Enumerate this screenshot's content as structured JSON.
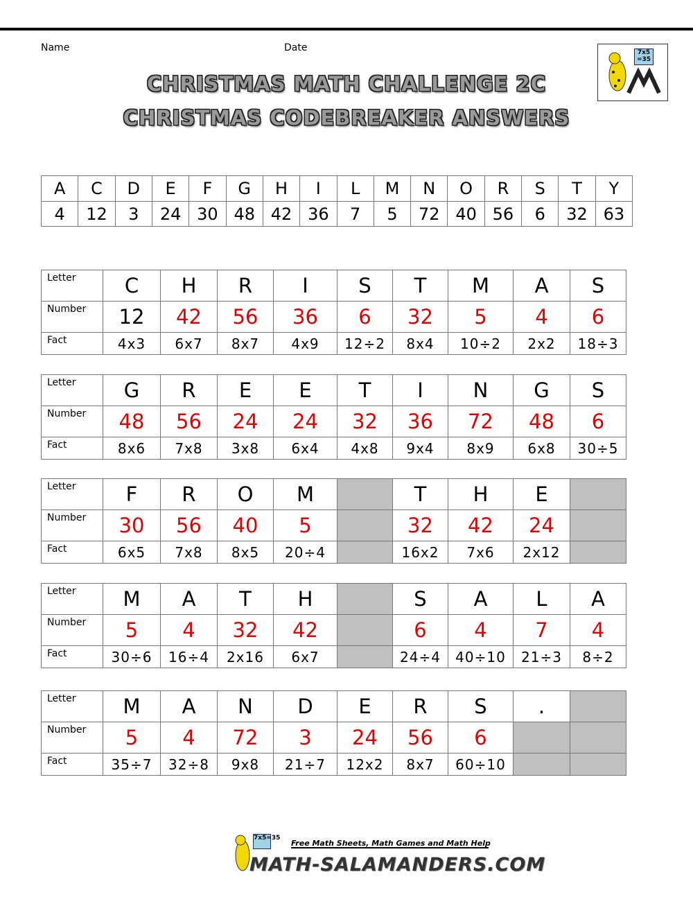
{
  "header": {
    "name_label": "Name",
    "date_label": "Date",
    "title_lines": [
      "CHRISTMAS MATH CHALLENGE 2C",
      "CHRISTMAS CODEBREAKER ANSWERS"
    ],
    "logo_board": [
      "7x5",
      "=35"
    ]
  },
  "key": {
    "letters": [
      "A",
      "C",
      "D",
      "E",
      "F",
      "G",
      "H",
      "I",
      "L",
      "M",
      "N",
      "O",
      "R",
      "S",
      "T",
      "Y"
    ],
    "numbers": [
      4,
      12,
      3,
      24,
      30,
      48,
      42,
      36,
      7,
      5,
      72,
      40,
      56,
      6,
      32,
      63
    ]
  },
  "row_labels": [
    "Letter",
    "Number",
    "Fact"
  ],
  "puzzles": [
    {
      "letters": [
        "C",
        "H",
        "R",
        "I",
        "S",
        "T",
        "M",
        "A",
        "S"
      ],
      "numbers": [
        12,
        42,
        56,
        36,
        6,
        32,
        5,
        4,
        6
      ],
      "facts": [
        "4x3",
        "6x7",
        "8x7",
        "4x9",
        "12÷2",
        "8x4",
        "10÷2",
        "2x2",
        "18÷3"
      ]
    },
    {
      "letters": [
        "G",
        "R",
        "E",
        "E",
        "T",
        "I",
        "N",
        "G",
        "S"
      ],
      "numbers": [
        48,
        56,
        24,
        24,
        32,
        36,
        72,
        48,
        6
      ],
      "facts": [
        "8x6",
        "7x8",
        "3x8",
        "6x4",
        "4x8",
        "9x4",
        "8x9",
        "6x8",
        "30÷5"
      ]
    },
    {
      "letters": [
        "F",
        "R",
        "O",
        "M",
        null,
        "T",
        "H",
        "E",
        null
      ],
      "numbers": [
        30,
        56,
        40,
        5,
        null,
        32,
        42,
        24,
        null
      ],
      "facts": [
        "6x5",
        "7x8",
        "8x5",
        "20÷4",
        null,
        "16x2",
        "7x6",
        "2x12",
        null
      ]
    },
    {
      "letters": [
        "M",
        "A",
        "T",
        "H",
        null,
        "S",
        "A",
        "L",
        "A"
      ],
      "numbers": [
        5,
        4,
        32,
        42,
        null,
        6,
        4,
        7,
        4
      ],
      "facts": [
        "30÷6",
        "16÷4",
        "2x16",
        "6x7",
        null,
        "24÷4",
        "40÷10",
        "21÷3",
        "8÷2"
      ]
    },
    {
      "letters": [
        "M",
        "A",
        "N",
        "D",
        "E",
        "R",
        "S",
        ".",
        null
      ],
      "numbers": [
        5,
        4,
        72,
        3,
        24,
        56,
        6,
        null,
        null
      ],
      "facts": [
        "35÷7",
        "32÷8",
        "9x8",
        "21÷7",
        "12x2",
        "8x7",
        "60÷10",
        null,
        null
      ]
    }
  ],
  "footer": {
    "tagline": "Free Math Sheets, Math Games and Math Help",
    "site": "MATH-SALAMANDERS.COM",
    "logo_board": "7x5=35"
  }
}
